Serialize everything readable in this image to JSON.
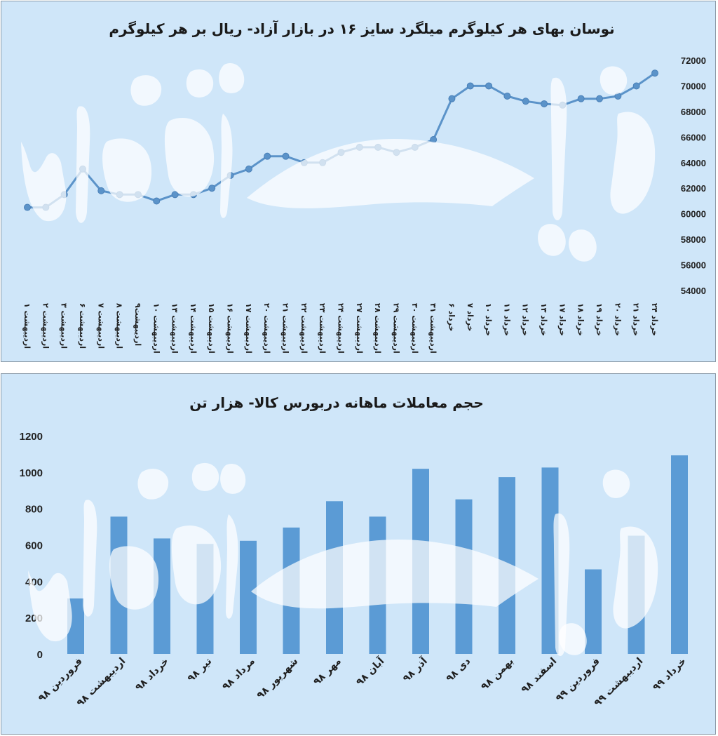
{
  "chart_data": [
    {
      "type": "line",
      "title": "نوسان بهای هر کیلوگرم میلگرد سایز ۱۶ در بازار آزاد- ریال بر هر کیلوگرم",
      "categories": [
        "۱ اردیبهشت",
        "۲ اردیبهشت",
        "۳ اردیبهشت",
        "۶ اردیبهشت",
        "۷ اردیبهشت",
        "۸ اردیبهشت",
        "۹اردیبهشت",
        "۱۰ اردیبهشت",
        "۱۳ اردیبهشت",
        "۱۴ اردیبهشت",
        "۱۵ اردیبهشت",
        "۱۶ اردیبهشت",
        "۱۷ اردیبهشت",
        "۲۰ اردیبهشت",
        "۲۱ اردیبهشت",
        "۲۲ اردیبهشت",
        "۲۳ اردیبهشت",
        "۲۴ اردیبهشت",
        "۲۷ اردیبهشت",
        "۲۸ اردیبهشت",
        "۲۹ اردیبهشت",
        "۳۰ اردیبهشت",
        "۳۱ اردیبهشت",
        "۶ خرداد",
        "۷ خرداد",
        "۱۰ خرداد",
        "۱۱ خرداد",
        "۱۲ خرداد",
        "۱۳ خرداد",
        "۱۷ خرداد",
        "۱۸ خرداد",
        "۱۹ خرداد",
        "۲۰ خرداد",
        "۲۱ خرداد",
        "۲۴ خرداد"
      ],
      "values": [
        60500,
        60500,
        61500,
        63500,
        61800,
        61500,
        61500,
        61000,
        61500,
        61500,
        62000,
        63000,
        63500,
        64500,
        64500,
        64000,
        64000,
        64800,
        65200,
        65200,
        64800,
        65200,
        65800,
        69000,
        70000,
        70000,
        69200,
        68800,
        68600,
        68500,
        69000,
        69000,
        69200,
        70000,
        71000
      ],
      "y_ticks": [
        "54000",
        "56000",
        "58000",
        "60000",
        "62000",
        "64000",
        "66000",
        "68000",
        "70000",
        "72000"
      ],
      "ylim": [
        54000,
        72000
      ],
      "y_axis_side": "right",
      "grid": false,
      "color": "#5b93c9"
    },
    {
      "type": "bar",
      "title": "حجم معاملات ماهانه دربورس کالا- هزار تن",
      "categories": [
        "فروردین ۹۸",
        "اردیبهشت ۹۸",
        "خرداد ۹۸",
        "تیر ۹۸",
        "مرداد ۹۸",
        "شهریور ۹۸",
        "مهر ۹۸",
        "آبان ۹۸",
        "آذر ۹۸",
        "دی ۹۸",
        "بهمن ۹۸",
        "اسفند ۹۸",
        "فروردین ۹۹",
        "اردیبهشت ۹۹",
        "خرداد ۹۹"
      ],
      "values": [
        305,
        755,
        635,
        605,
        622,
        695,
        840,
        755,
        1018,
        850,
        972,
        1025,
        465,
        650,
        1092
      ],
      "y_ticks": [
        "0",
        "200",
        "400",
        "600",
        "800",
        "1000",
        "1200"
      ],
      "ylim": [
        0,
        1200
      ],
      "y_axis_side": "left",
      "grid": false,
      "color": "#5b9bd5"
    }
  ]
}
